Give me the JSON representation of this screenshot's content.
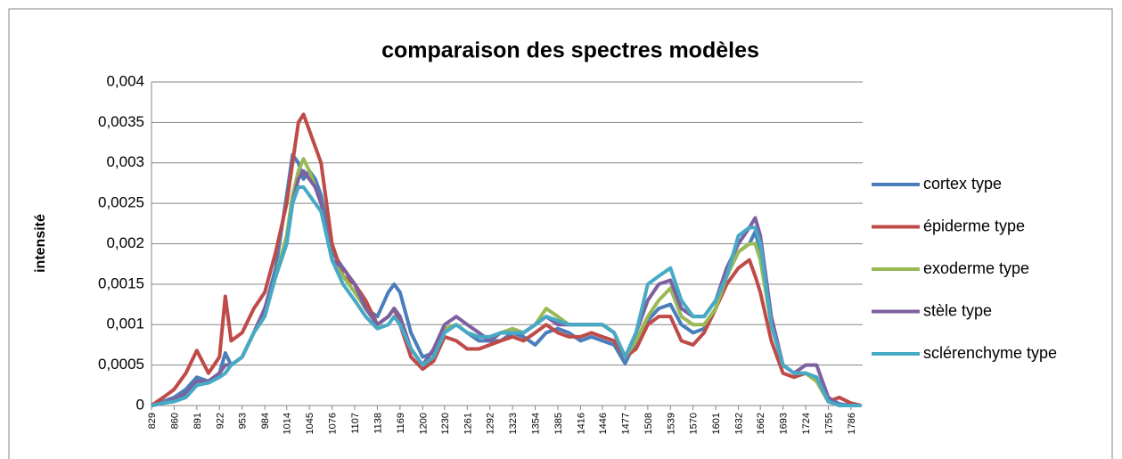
{
  "chart_data": {
    "type": "line",
    "title": "comparaison des spectres modèles",
    "y_label": "intensité",
    "x": [
      829,
      845,
      860,
      876,
      891,
      907,
      922,
      930,
      938,
      953,
      969,
      984,
      999,
      1014,
      1022,
      1030,
      1037,
      1045,
      1053,
      1061,
      1076,
      1091,
      1107,
      1122,
      1138,
      1153,
      1161,
      1169,
      1184,
      1200,
      1215,
      1230,
      1246,
      1261,
      1277,
      1292,
      1307,
      1323,
      1338,
      1354,
      1369,
      1385,
      1400,
      1416,
      1431,
      1446,
      1462,
      1477,
      1492,
      1508,
      1523,
      1539,
      1554,
      1570,
      1585,
      1601,
      1616,
      1632,
      1647,
      1655,
      1662,
      1677,
      1693,
      1708,
      1724,
      1739,
      1755,
      1770,
      1786,
      1800
    ],
    "series": [
      {
        "name": "cortex type",
        "color": "#4a7ebb",
        "values": [
          0,
          5e-05,
          0.0001,
          0.0002,
          0.00035,
          0.0003,
          0.0004,
          0.00065,
          0.0005,
          0.0006,
          0.0009,
          0.0012,
          0.0017,
          0.0026,
          0.0031,
          0.003,
          0.0028,
          0.0029,
          0.0028,
          0.0026,
          0.0019,
          0.0017,
          0.0015,
          0.0012,
          0.0011,
          0.0014,
          0.0015,
          0.0014,
          0.0009,
          0.0006,
          0.00065,
          0.00095,
          0.001,
          0.0009,
          0.0008,
          0.0008,
          0.0008,
          0.0009,
          0.00085,
          0.00075,
          0.0009,
          0.00095,
          0.0009,
          0.0008,
          0.00085,
          0.0008,
          0.00075,
          0.00052,
          0.0008,
          0.00105,
          0.0012,
          0.00125,
          0.001,
          0.0009,
          0.00095,
          0.0012,
          0.0016,
          0.0019,
          0.002,
          0.00215,
          0.0019,
          0.001,
          0.0005,
          0.0004,
          0.0004,
          0.00035,
          0.0001,
          2e-05,
          0,
          0
        ]
      },
      {
        "name": "épiderme type",
        "color": "#be4b48",
        "values": [
          0,
          0.0001,
          0.0002,
          0.0004,
          0.00068,
          0.0004,
          0.0006,
          0.00135,
          0.0008,
          0.0009,
          0.0012,
          0.0014,
          0.0019,
          0.0025,
          0.003,
          0.0035,
          0.0036,
          0.0034,
          0.0032,
          0.003,
          0.002,
          0.0016,
          0.0015,
          0.0013,
          0.001,
          0.0011,
          0.0012,
          0.001,
          0.0006,
          0.00045,
          0.00055,
          0.00085,
          0.0008,
          0.0007,
          0.0007,
          0.00075,
          0.0008,
          0.00085,
          0.0008,
          0.0009,
          0.001,
          0.0009,
          0.00085,
          0.00085,
          0.0009,
          0.00085,
          0.0008,
          0.0006,
          0.0007,
          0.001,
          0.0011,
          0.0011,
          0.0008,
          0.00075,
          0.0009,
          0.0012,
          0.0015,
          0.0017,
          0.0018,
          0.0016,
          0.0014,
          0.0008,
          0.0004,
          0.00035,
          0.0004,
          0.0003,
          5e-05,
          0.0001,
          3e-05,
          0
        ]
      },
      {
        "name": "exoderme type",
        "color": "#98b954",
        "values": [
          0,
          3e-05,
          8e-05,
          0.00015,
          0.0003,
          0.0003,
          0.0004,
          0.0005,
          0.0005,
          0.0006,
          0.0009,
          0.0012,
          0.0016,
          0.0021,
          0.0026,
          0.0029,
          0.00305,
          0.0029,
          0.0027,
          0.0025,
          0.0018,
          0.0016,
          0.0014,
          0.0012,
          0.001,
          0.0011,
          0.0012,
          0.0011,
          0.0007,
          0.0005,
          0.0006,
          0.00095,
          0.001,
          0.0009,
          0.00085,
          0.00085,
          0.0009,
          0.00095,
          0.0009,
          0.001,
          0.0012,
          0.0011,
          0.001,
          0.001,
          0.001,
          0.001,
          0.0009,
          0.0006,
          0.0008,
          0.0011,
          0.0013,
          0.00145,
          0.0011,
          0.001,
          0.001,
          0.0012,
          0.0016,
          0.0019,
          0.002,
          0.002,
          0.0018,
          0.001,
          0.0005,
          0.0004,
          0.0004,
          0.0003,
          5e-05,
          0,
          0,
          0
        ]
      },
      {
        "name": "stèle type",
        "color": "#7d60a0",
        "values": [
          0,
          3e-05,
          8e-05,
          0.00015,
          0.0003,
          0.0003,
          0.0004,
          0.0005,
          0.0005,
          0.0006,
          0.0009,
          0.0012,
          0.0016,
          0.002,
          0.0025,
          0.0028,
          0.0029,
          0.0028,
          0.0027,
          0.0025,
          0.0018,
          0.0017,
          0.0015,
          0.0012,
          0.001,
          0.0011,
          0.0012,
          0.0011,
          0.0007,
          0.0005,
          0.0007,
          0.001,
          0.0011,
          0.001,
          0.0009,
          0.0008,
          0.0009,
          0.0009,
          0.0009,
          0.001,
          0.0011,
          0.001,
          0.001,
          0.001,
          0.001,
          0.001,
          0.0009,
          0.0006,
          0.0009,
          0.0013,
          0.0015,
          0.00155,
          0.0012,
          0.0011,
          0.0011,
          0.0013,
          0.0017,
          0.002,
          0.0022,
          0.00232,
          0.0021,
          0.0011,
          0.0005,
          0.0004,
          0.0005,
          0.0005,
          0.0001,
          0,
          0,
          0
        ]
      },
      {
        "name": "sclérenchyme type",
        "color": "#46aac5",
        "values": [
          0,
          3e-05,
          5e-05,
          0.0001,
          0.00025,
          0.00028,
          0.00035,
          0.0004,
          0.0005,
          0.0006,
          0.0009,
          0.0011,
          0.0016,
          0.002,
          0.0025,
          0.0027,
          0.0027,
          0.0026,
          0.0025,
          0.0024,
          0.0018,
          0.0015,
          0.0013,
          0.0011,
          0.00095,
          0.001,
          0.0011,
          0.001,
          0.0007,
          0.0005,
          0.0006,
          0.0009,
          0.001,
          0.0009,
          0.00085,
          0.00085,
          0.0009,
          0.0009,
          0.0009,
          0.001,
          0.0011,
          0.00105,
          0.001,
          0.001,
          0.001,
          0.001,
          0.0009,
          0.0006,
          0.0009,
          0.0015,
          0.0016,
          0.0017,
          0.0013,
          0.0011,
          0.0011,
          0.0013,
          0.0016,
          0.0021,
          0.0022,
          0.0022,
          0.002,
          0.001,
          0.0005,
          0.0004,
          0.0004,
          0.00035,
          5e-05,
          0,
          0,
          0
        ]
      }
    ],
    "xlim": [
      829,
      1802
    ],
    "xticks": [
      829,
      860,
      891,
      922,
      953,
      984,
      1014,
      1045,
      1076,
      1107,
      1138,
      1169,
      1200,
      1230,
      1261,
      1292,
      1323,
      1354,
      1385,
      1416,
      1446,
      1477,
      1508,
      1539,
      1570,
      1601,
      1632,
      1662,
      1693,
      1724,
      1755,
      1786
    ],
    "ylim": [
      0,
      0.004
    ],
    "yticks": [
      0,
      {
        "value": 0.0005,
        "label": "0,0005"
      },
      {
        "value": 0.001,
        "label": "0,001"
      },
      {
        "value": 0.0015,
        "label": "0,0015"
      },
      {
        "value": 0.002,
        "label": "0,002"
      },
      {
        "value": 0.0025,
        "label": "0,0025"
      },
      {
        "value": 0.003,
        "label": "0,003"
      },
      {
        "value": 0.0035,
        "label": "0,0035"
      },
      {
        "value": 0.004,
        "label": "0,004"
      }
    ],
    "grid": true,
    "legend": "right"
  }
}
